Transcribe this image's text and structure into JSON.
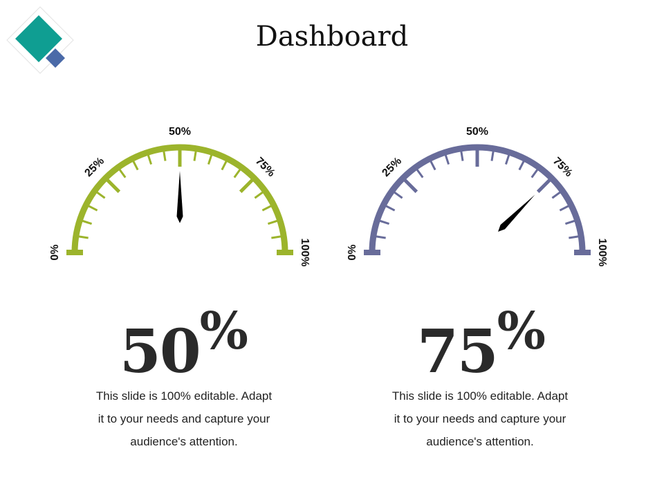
{
  "title": "Dashboard",
  "colors": {
    "teal": "#0f9e92",
    "blue": "#4a6aa8",
    "green": "#9cb42c",
    "slate": "#686c9a"
  },
  "tick_labels": [
    "0%",
    "25%",
    "50%",
    "75%",
    "100%"
  ],
  "gauges": [
    {
      "value": 50,
      "color": "#9cb42c",
      "big_value": "50",
      "unit": "%",
      "caption_lines": [
        "This slide is 100% editable. Adapt",
        "it to your needs and capture your",
        "audience's attention."
      ]
    },
    {
      "value": 75,
      "color": "#686c9a",
      "big_value": "75",
      "unit": "%",
      "caption_lines": [
        "This slide is 100% editable. Adapt",
        "it to your needs and capture your",
        "audience's attention."
      ]
    }
  ]
}
